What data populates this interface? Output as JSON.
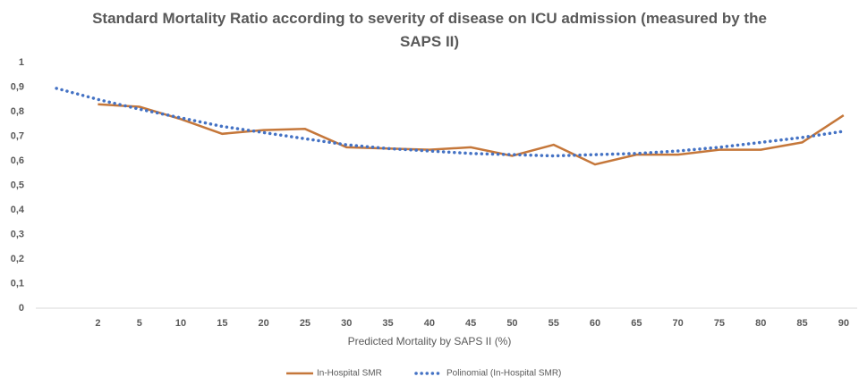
{
  "chart_data": {
    "type": "line",
    "title": "Standard Mortality Ratio according to severity of disease on ICU admission (measured by the SAPS II)",
    "x_label": "Predicted Mortality by SAPS II (%)",
    "categories": [
      null,
      "2",
      "5",
      "10",
      "15",
      "20",
      "25",
      "30",
      "35",
      "40",
      "45",
      "50",
      "55",
      "60",
      "65",
      "70",
      "75",
      "80",
      "85",
      "90"
    ],
    "series": [
      {
        "name": "In-Hospital SMR",
        "color": "#c5773a",
        "line_style": "solid",
        "values": [
          null,
          0.83,
          0.82,
          0.77,
          0.71,
          0.725,
          0.73,
          0.655,
          0.65,
          0.645,
          0.655,
          0.62,
          0.665,
          0.585,
          0.625,
          0.625,
          0.645,
          0.645,
          0.675,
          0.785
        ]
      },
      {
        "name": "Polinomial (In-Hospital SMR)",
        "color": "#4472c4",
        "line_style": "dotted",
        "values": [
          0.895,
          0.85,
          0.81,
          0.775,
          0.74,
          0.715,
          0.69,
          0.665,
          0.65,
          0.64,
          0.63,
          0.625,
          0.62,
          0.625,
          0.63,
          0.64,
          0.655,
          0.675,
          0.695,
          0.72
        ]
      }
    ],
    "ylim": [
      0,
      1
    ],
    "yticks": [
      0,
      {
        "value": 0.1,
        "label": "0,1"
      },
      {
        "value": 0.2,
        "label": "0,2"
      },
      {
        "value": 0.3,
        "label": "0,3"
      },
      {
        "value": 0.4,
        "label": "0,4"
      },
      {
        "value": 0.5,
        "label": "0,5"
      },
      {
        "value": 0.6,
        "label": "0,6"
      },
      {
        "value": 0.7,
        "label": "0,7"
      },
      {
        "value": 0.8,
        "label": "0,8"
      },
      {
        "value": 0.9,
        "label": "0,9"
      },
      1
    ],
    "grid": false,
    "legend": "bottom"
  }
}
